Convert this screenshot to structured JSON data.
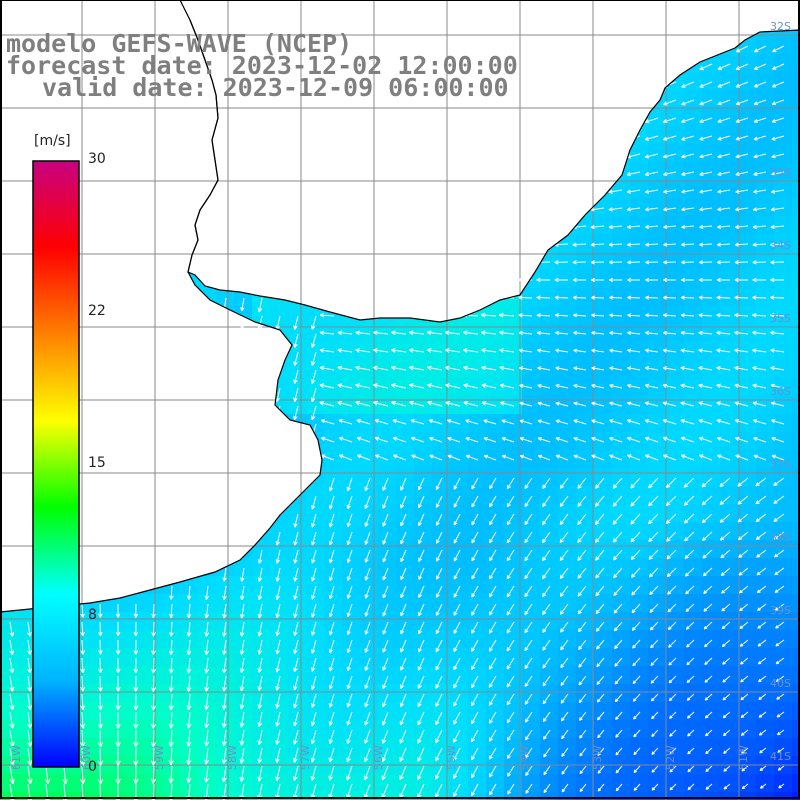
{
  "title": {
    "line1": "modelo GEFS-WAVE (NCEP)",
    "line2": "forecast date: 2023-12-02 12:00:00",
    "line3": "valid date: 2023-12-09 06:00:00"
  },
  "colorbar": {
    "unit": "[m/s]",
    "ticks": [
      "30",
      "22",
      "15",
      "8",
      "0"
    ],
    "stops": [
      "#0000ff",
      "#00b4ff",
      "#00ffff",
      "#00ff00",
      "#ffff00",
      "#ff8000",
      "#ff0000",
      "#c80080"
    ]
  },
  "map": {
    "lon_labels": [
      "61W",
      "60W",
      "59W",
      "58W",
      "57W",
      "56W",
      "55W",
      "54W",
      "53W",
      "52W",
      "51W"
    ],
    "lat_labels": [
      "32S",
      "33S",
      "34S",
      "35S",
      "36S",
      "37S",
      "38S",
      "39S",
      "40S",
      "41S"
    ],
    "land_color": "#ffffff",
    "field": "wind speed"
  }
}
